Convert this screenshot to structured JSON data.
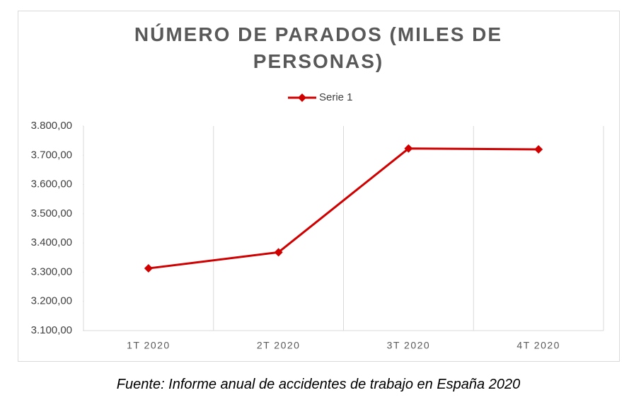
{
  "chart_data": {
    "type": "line",
    "title": "NÚMERO DE PARADOS (MILES DE PERSONAS)",
    "categories": [
      "1T 2020",
      "2T 2020",
      "3T 2020",
      "4T 2020"
    ],
    "series": [
      {
        "name": "Serie 1",
        "color": "#d00000",
        "values": [
          3313,
          3368,
          3723,
          3720
        ]
      }
    ],
    "ylim": [
      3100,
      3800
    ],
    "yticks": [
      {
        "value": 3100,
        "label": "3.100,00"
      },
      {
        "value": 3200,
        "label": "3.200,00"
      },
      {
        "value": 3300,
        "label": "3.300,00"
      },
      {
        "value": 3400,
        "label": "3.400,00"
      },
      {
        "value": 3500,
        "label": "3.500,00"
      },
      {
        "value": 3600,
        "label": "3.600,00"
      },
      {
        "value": 3700,
        "label": "3.700,00"
      },
      {
        "value": 3800,
        "label": "3.800,00"
      }
    ],
    "legend": "top"
  },
  "caption": "Fuente: Informe anual de accidentes de trabajo en España 2020"
}
